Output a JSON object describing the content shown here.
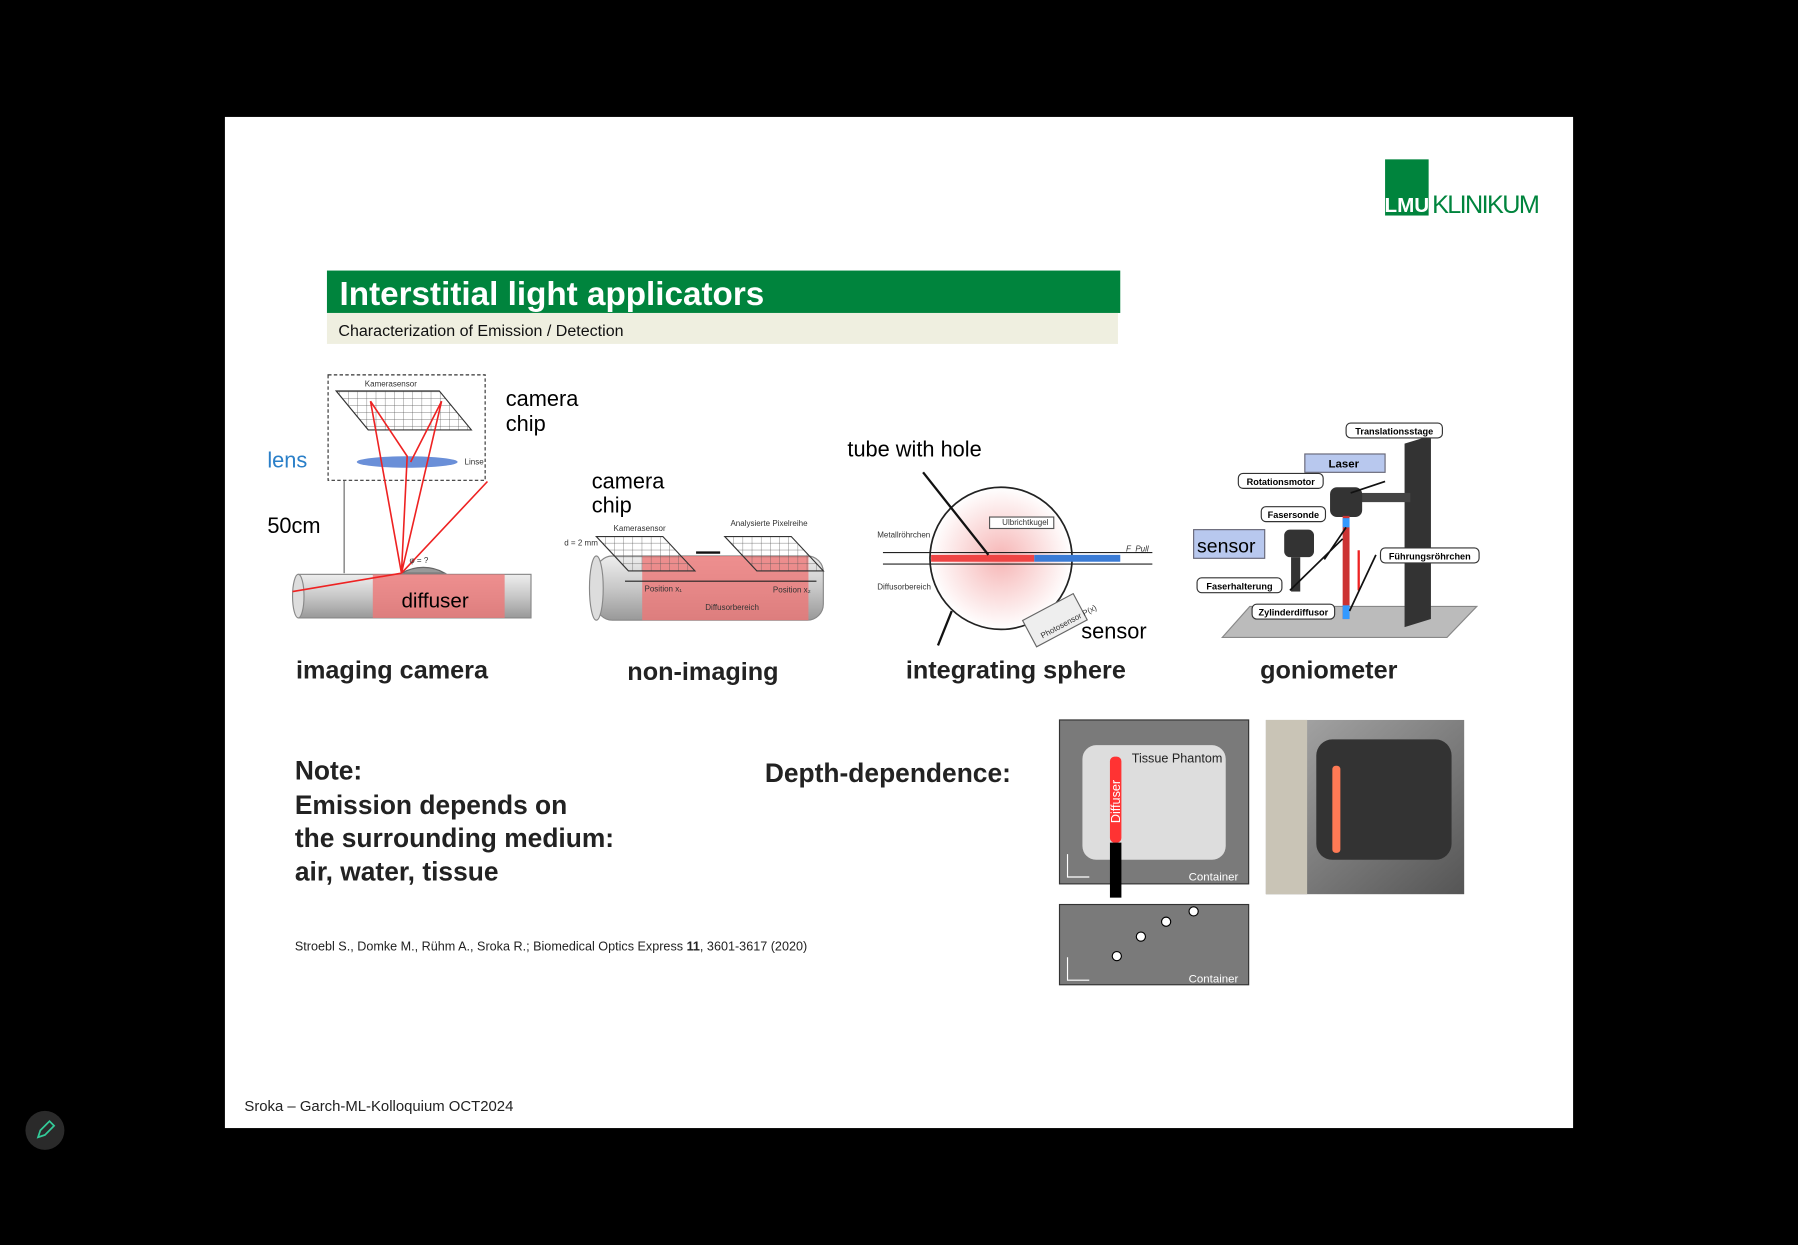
{
  "logo": {
    "lmu": "LMU",
    "klinikum": "KLINIKUM"
  },
  "header": {
    "title": "Interstitial light applicators",
    "subtitle": "Characterization of Emission / Detection"
  },
  "panels": [
    {
      "caption": "imaging camera",
      "labels": [
        "camera",
        "chip",
        "lens",
        "50cm",
        "diffuser",
        "Kamerasensor",
        "Linse",
        "φ = ?"
      ]
    },
    {
      "caption": "non-imaging",
      "labels": [
        "camera",
        "chip",
        "Kamerasensor",
        "Analysierte Pixelreihe",
        "d = 2 mm",
        "Position x₁",
        "Position x₂",
        "Diffusorbereich"
      ]
    },
    {
      "caption": "integrating sphere",
      "labels": [
        "tube with hole",
        "sensor",
        "Metallröhrchen",
        "Diffusorbereich",
        "Ulbrichtkugel",
        "F_Pull",
        "Photosensor P(x)"
      ]
    },
    {
      "caption": "goniometer",
      "labels": [
        "Translationsstage",
        "Laser",
        "Rotationsmotor",
        "Fasersonde",
        "sensor",
        "Faserhalterung",
        "Zylinderdiffusor",
        "Führungsröhrchen"
      ]
    }
  ],
  "note": [
    "Note:",
    "Emission depends on",
    "the surrounding medium:",
    "air, water, tissue"
  ],
  "depth": {
    "heading": "Depth-dependence:",
    "phantom": "Tissue Phantom",
    "diffuser": "Diffuser",
    "container_top": "Container",
    "container_bottom": "Container"
  },
  "citation": {
    "before": "Stroebl S., Domke M., Rühm A., Sroka R.; Biomedical Optics Express ",
    "volume": "11",
    "after": ", 3601-3617 (2020)"
  },
  "footer": "Sroka – Garch-ML-Kolloquium OCT2024"
}
